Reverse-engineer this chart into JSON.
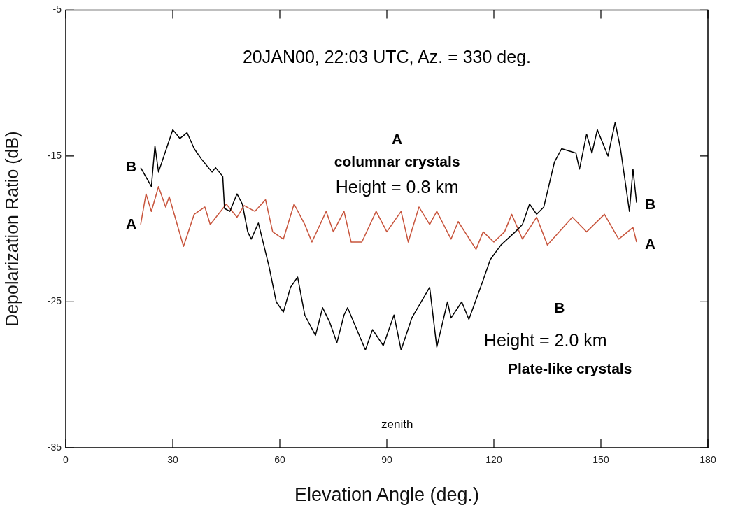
{
  "chart_data": {
    "type": "line",
    "title": "20JAN00, 22:03 UTC, Az. = 330 deg.",
    "xlabel": "Elevation Angle (deg.)",
    "ylabel": "Depolarization Ratio (dB)",
    "xlim": [
      0,
      180
    ],
    "xticks": [
      0,
      30,
      60,
      90,
      120,
      150,
      180
    ],
    "ylim": [
      -35,
      -5
    ],
    "yticks": [
      -35,
      -25,
      -15,
      -5
    ],
    "grid": false,
    "legend": false,
    "marker": "none",
    "line_style": "solid",
    "series": [
      {
        "name": "B",
        "color": "#000000",
        "x": [
          21,
          24,
          25,
          26,
          30,
          32,
          34,
          36,
          38,
          41,
          42,
          44,
          44.5,
          46,
          48,
          49.5,
          51,
          52,
          54,
          55.5,
          57,
          59,
          61,
          63,
          65,
          67,
          70,
          72,
          74,
          76,
          78,
          79,
          84,
          86,
          89,
          92,
          94,
          97,
          102,
          104,
          107,
          108,
          111,
          113,
          117,
          119,
          122,
          126,
          128,
          130,
          132,
          134,
          137,
          139,
          143,
          144,
          146,
          147.5,
          149,
          152,
          154,
          155.5,
          158,
          159,
          160
        ],
        "values": [
          -15.8,
          -17.1,
          -14.3,
          -16.1,
          -13.2,
          -13.8,
          -13.4,
          -14.5,
          -15.2,
          -16.1,
          -15.8,
          -16.4,
          -18.6,
          -18.8,
          -17.6,
          -18.3,
          -20.2,
          -20.7,
          -19.6,
          -21.1,
          -22.6,
          -25,
          -25.7,
          -24,
          -23.3,
          -25.9,
          -27.3,
          -25.4,
          -26.4,
          -27.8,
          -25.9,
          -25.4,
          -28.3,
          -26.9,
          -28,
          -25.9,
          -28.3,
          -26.1,
          -24,
          -28.1,
          -25,
          -26.1,
          -25,
          -26.2,
          -23.5,
          -22.1,
          -21.1,
          -20.2,
          -19.7,
          -18.3,
          -19,
          -18.5,
          -15.4,
          -14.5,
          -14.8,
          -15.9,
          -13.5,
          -14.8,
          -13.2,
          -15,
          -12.7,
          -14.5,
          -18.8,
          -15.9,
          -18.2
        ]
      },
      {
        "name": "A",
        "color": "#c8553d",
        "x": [
          21,
          22.5,
          24,
          26,
          28,
          29,
          31,
          33,
          36,
          39,
          40.5,
          45,
          48,
          50,
          53,
          56,
          58,
          61,
          64,
          67,
          69,
          73,
          75,
          78,
          80,
          83,
          87,
          90,
          94,
          96,
          99,
          102,
          104,
          108,
          110,
          115,
          117,
          120,
          123,
          125,
          128,
          132,
          135,
          142,
          146,
          151,
          155,
          159,
          160
        ],
        "values": [
          -19.7,
          -17.6,
          -18.8,
          -17.1,
          -18.5,
          -17.8,
          -19.5,
          -21.2,
          -19,
          -18.5,
          -19.7,
          -18.3,
          -19.2,
          -18.4,
          -18.8,
          -18,
          -20.2,
          -20.7,
          -18.3,
          -19.7,
          -20.9,
          -18.8,
          -20.2,
          -18.8,
          -20.9,
          -20.9,
          -18.8,
          -20.2,
          -18.8,
          -20.9,
          -18.5,
          -19.7,
          -18.8,
          -20.7,
          -19.5,
          -21.4,
          -20.2,
          -20.9,
          -20.2,
          -19,
          -20.7,
          -19.2,
          -21.1,
          -19.2,
          -20.2,
          -19,
          -20.7,
          -19.9,
          -20.9
        ]
      }
    ],
    "annotations": [
      "A",
      "columnar crystals",
      "Height = 0.8 km",
      "B",
      "Height = 2.0 km",
      "Plate-like crystals",
      "zenith"
    ]
  }
}
